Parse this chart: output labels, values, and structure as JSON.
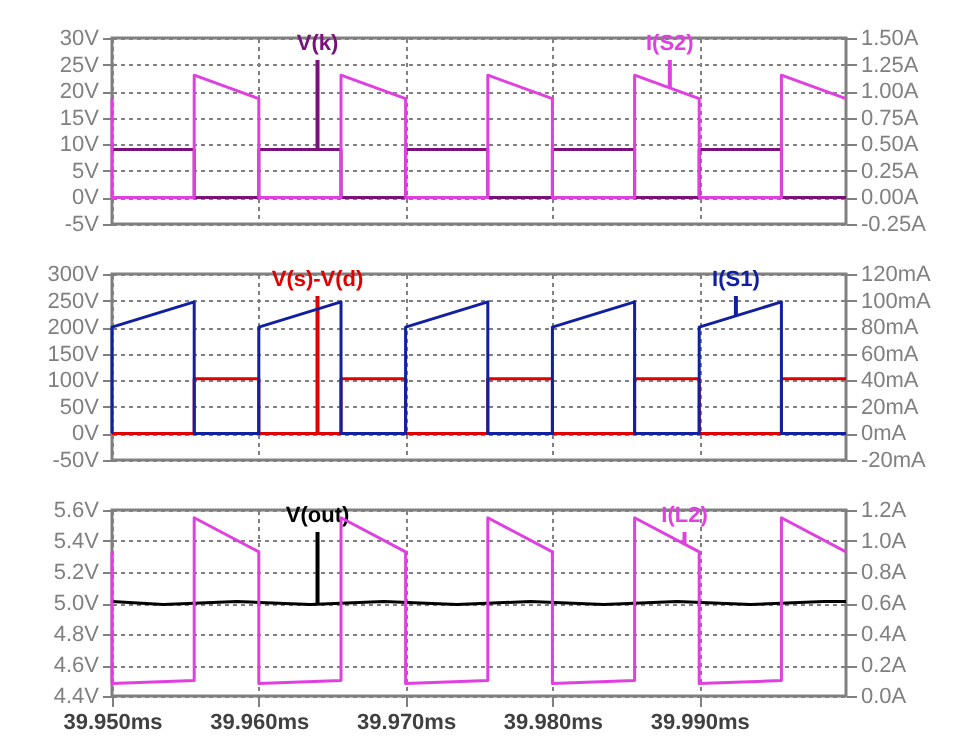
{
  "chart_data": [
    {
      "type": "line",
      "xlim": [
        39.95,
        40.0
      ],
      "xticks": [
        39.95,
        39.96,
        39.97,
        39.98,
        39.99
      ],
      "tick_labels": "y",
      "grid": true,
      "ylim": [
        -5,
        30
      ],
      "yticks": [
        {
          "value": -5,
          "label": "-5V"
        },
        {
          "value": 0,
          "label": "0V"
        },
        {
          "value": 5,
          "label": "5V"
        },
        {
          "value": 10,
          "label": "10V"
        },
        {
          "value": 15,
          "label": "15V"
        },
        {
          "value": 20,
          "label": "20V"
        },
        {
          "value": 25,
          "label": "25V"
        },
        {
          "value": 30,
          "label": "30V"
        }
      ],
      "y2lim": [
        -0.25,
        1.5
      ],
      "y2ticks": [
        {
          "value": -0.25,
          "label": "-0.25A"
        },
        {
          "value": 0,
          "label": "0.00A"
        },
        {
          "value": 0.25,
          "label": "0.25A"
        },
        {
          "value": 0.5,
          "label": "0.50A"
        },
        {
          "value": 0.75,
          "label": "0.75A"
        },
        {
          "value": 1.0,
          "label": "1.00A"
        },
        {
          "value": 1.25,
          "label": "1.25A"
        },
        {
          "value": 1.5,
          "label": "1.50A"
        }
      ],
      "series": [
        {
          "name": "V(k)",
          "color": "#7a107a",
          "axis": "y",
          "x": [
            39.95,
            39.9556,
            39.9556,
            39.96,
            39.96,
            39.9656,
            39.9656,
            39.97,
            39.97,
            39.9756,
            39.9756,
            39.98,
            39.98,
            39.9856,
            39.9856,
            39.99,
            39.99,
            39.9956,
            39.9956,
            40.0
          ],
          "values": [
            9,
            9,
            0,
            0,
            9,
            9,
            0,
            0,
            9,
            9,
            0,
            0,
            9,
            9,
            0,
            0,
            9,
            9,
            0,
            0
          ]
        },
        {
          "name": "I(S2)",
          "color": "#e040e0",
          "axis": "y2",
          "x": [
            39.95,
            39.95,
            39.9556,
            39.9556,
            39.96,
            39.96,
            39.9656,
            39.9656,
            39.97,
            39.97,
            39.9756,
            39.9756,
            39.98,
            39.98,
            39.9856,
            39.9856,
            39.99,
            39.99,
            39.9956,
            39.9956,
            40.0
          ],
          "values": [
            0.93,
            0,
            0,
            1.15,
            0.93,
            0,
            0,
            1.15,
            0.93,
            0,
            0,
            1.15,
            0.93,
            0,
            0,
            1.15,
            0.93,
            0,
            0,
            1.15,
            0.93
          ]
        }
      ]
    },
    {
      "type": "line",
      "xlim": [
        39.95,
        40.0
      ],
      "xticks": [
        39.95,
        39.96,
        39.97,
        39.98,
        39.99
      ],
      "tick_labels": "y",
      "grid": true,
      "ylim": [
        -50,
        300
      ],
      "yticks": [
        {
          "value": -50,
          "label": "-50V"
        },
        {
          "value": 0,
          "label": "0V"
        },
        {
          "value": 50,
          "label": "50V"
        },
        {
          "value": 100,
          "label": "100V"
        },
        {
          "value": 150,
          "label": "150V"
        },
        {
          "value": 200,
          "label": "200V"
        },
        {
          "value": 250,
          "label": "250V"
        },
        {
          "value": 300,
          "label": "300V"
        }
      ],
      "y2lim": [
        -20,
        120
      ],
      "y2ticks": [
        {
          "value": -20,
          "label": "-20mA"
        },
        {
          "value": 0,
          "label": "0mA"
        },
        {
          "value": 20,
          "label": "20mA"
        },
        {
          "value": 40,
          "label": "40mA"
        },
        {
          "value": 60,
          "label": "60mA"
        },
        {
          "value": 80,
          "label": "80mA"
        },
        {
          "value": 100,
          "label": "100mA"
        },
        {
          "value": 120,
          "label": "120mA"
        }
      ],
      "series": [
        {
          "name": "V(s)-V(d)",
          "color": "#e00000",
          "axis": "y",
          "x": [
            39.95,
            39.9556,
            39.9556,
            39.96,
            39.96,
            39.9656,
            39.9656,
            39.97,
            39.97,
            39.9756,
            39.9756,
            39.98,
            39.98,
            39.9856,
            39.9856,
            39.99,
            39.99,
            39.9956,
            39.9956,
            40.0
          ],
          "values": [
            0,
            0,
            103,
            103,
            0,
            0,
            103,
            103,
            0,
            0,
            103,
            103,
            0,
            0,
            103,
            103,
            0,
            0,
            103,
            103
          ]
        },
        {
          "name": "I(S1)",
          "color": "#1020a0",
          "axis": "y2",
          "x": [
            39.95,
            39.95,
            39.9556,
            39.9556,
            39.96,
            39.96,
            39.9656,
            39.9656,
            39.97,
            39.97,
            39.9756,
            39.9756,
            39.98,
            39.98,
            39.9856,
            39.9856,
            39.99,
            39.99,
            39.9956,
            39.9956,
            40.0
          ],
          "values": [
            0,
            80,
            99,
            0,
            0,
            80,
            99,
            0,
            0,
            80,
            99,
            0,
            0,
            80,
            99,
            0,
            0,
            80,
            99,
            0,
            0
          ]
        }
      ]
    },
    {
      "type": "line",
      "xlim": [
        39.95,
        40.0
      ],
      "xticks": [
        {
          "value": 39.95,
          "label": "39.950ms"
        },
        {
          "value": 39.96,
          "label": "39.960ms"
        },
        {
          "value": 39.97,
          "label": "39.970ms"
        },
        {
          "value": 39.98,
          "label": "39.980ms"
        },
        {
          "value": 39.99,
          "label": "39.990ms"
        }
      ],
      "grid": true,
      "ylim": [
        4.4,
        5.6
      ],
      "yticks": [
        {
          "value": 4.4,
          "label": "4.4V"
        },
        {
          "value": 4.6,
          "label": "4.6V"
        },
        {
          "value": 4.8,
          "label": "4.8V"
        },
        {
          "value": 5.0,
          "label": "5.0V"
        },
        {
          "value": 5.2,
          "label": "5.2V"
        },
        {
          "value": 5.4,
          "label": "5.4V"
        },
        {
          "value": 5.6,
          "label": "5.6V"
        }
      ],
      "y2lim": [
        0,
        1.2
      ],
      "y2ticks": [
        {
          "value": 0,
          "label": "0.0A"
        },
        {
          "value": 0.2,
          "label": "0.2A"
        },
        {
          "value": 0.4,
          "label": "0.4A"
        },
        {
          "value": 0.6,
          "label": "0.6A"
        },
        {
          "value": 0.8,
          "label": "0.8A"
        },
        {
          "value": 1.0,
          "label": "1.0A"
        },
        {
          "value": 1.2,
          "label": "1.2A"
        }
      ],
      "series": [
        {
          "name": "V(out)",
          "color": "#000000",
          "axis": "y",
          "x": [
            39.95,
            39.9535,
            39.9585,
            39.9635,
            39.9685,
            39.9735,
            39.9785,
            39.9835,
            39.9885,
            39.9935,
            39.9985,
            40.0
          ],
          "values": [
            5.01,
            4.99,
            5.01,
            4.99,
            5.01,
            4.99,
            5.01,
            4.99,
            5.01,
            4.99,
            5.01,
            5.01
          ]
        },
        {
          "name": "I(L2)",
          "color": "#e040e0",
          "axis": "y2",
          "x": [
            39.95,
            39.95,
            39.9556,
            39.9556,
            39.96,
            39.96,
            39.9656,
            39.9656,
            39.97,
            39.97,
            39.9756,
            39.9756,
            39.98,
            39.98,
            39.9856,
            39.9856,
            39.99,
            39.99,
            39.9956,
            39.9956,
            40.0
          ],
          "values": [
            0.93,
            0.08,
            0.1,
            1.15,
            0.93,
            0.08,
            0.1,
            1.15,
            0.93,
            0.08,
            0.1,
            1.15,
            0.93,
            0.08,
            0.1,
            1.15,
            0.93,
            0.08,
            0.1,
            1.15,
            0.93
          ]
        }
      ]
    }
  ]
}
